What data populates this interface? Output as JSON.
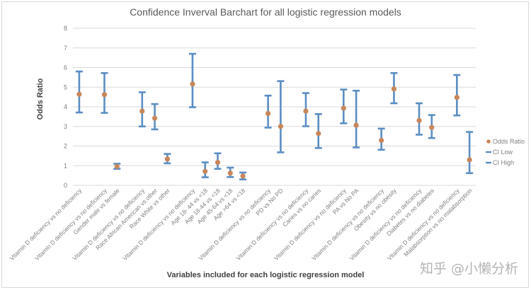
{
  "chart_data": {
    "type": "scatter",
    "subtype": "error-bar",
    "title": "Confidence Inverval Barchart for all logistic regression models",
    "xlabel": "Variables included for each logistic regression model",
    "ylabel": "Odds Ratio",
    "ylim": [
      0,
      8
    ],
    "yticks": [
      "0",
      "1",
      "2",
      "3",
      "4",
      "5",
      "6",
      "7",
      "8"
    ],
    "grid": true,
    "legend_position": "right",
    "legend": [
      {
        "name": "Odds Ratio",
        "marker": "dot",
        "color": "#c8865a"
      },
      {
        "name": "CI Low",
        "marker": "dash",
        "color": "#5b8ec3"
      },
      {
        "name": "CI High",
        "marker": "dash",
        "color": "#5b8ec3"
      }
    ],
    "colors": {
      "odds_ratio": "#c8865a",
      "ci": "#5b8ec3",
      "grid": "#d9d9d9"
    },
    "categories": [
      "Vitamin D deficiency vs no deficiency",
      "",
      "Vitamin D deficiency vs no deficiency",
      "Gender male vs female",
      "",
      "Vitamin D deficiency vs no deficiency",
      "Race African American vs other",
      "Race White vs other",
      "",
      "Vitamin D deficiency vs no deficiency",
      "Age 18- 44 vs <18",
      "Age 18-44 vs <18",
      "Age 45-64 vs <18",
      "Age >64 vs <18",
      "",
      "Vitamin D deficiency vs no deficiency",
      "PD vs No PD",
      "",
      "Vitamin D deficiency vs no deficiency",
      "Caries vs no caries",
      "",
      "Vitamin D deficiency vs no deficiency",
      "PA vs No PA",
      "",
      "Vitamin D deficiency vs no deficiency",
      "Obesity vs no obesity",
      "",
      "Vitamin D deficiency vs no deficiency",
      "Diabetes vs no diabetes",
      "",
      "Vitamin D deficiency vs no deficiency",
      "Malabsorption vs no malabsorption"
    ],
    "series": [
      {
        "name": "Odds Ratio",
        "values": [
          4.64,
          null,
          4.62,
          0.96,
          null,
          3.78,
          3.42,
          1.34,
          null,
          5.16,
          0.71,
          1.17,
          0.62,
          0.47,
          null,
          3.66,
          3.0,
          null,
          3.78,
          2.64,
          null,
          3.93,
          3.06,
          null,
          2.29,
          4.91,
          null,
          3.3,
          2.95,
          null,
          4.48,
          1.3
        ]
      },
      {
        "name": "CI Low",
        "values": [
          3.71,
          null,
          3.69,
          0.84,
          null,
          3.0,
          2.85,
          1.12,
          null,
          3.98,
          0.41,
          0.84,
          0.42,
          0.3,
          null,
          2.94,
          1.68,
          null,
          3.01,
          1.9,
          null,
          3.16,
          1.93,
          null,
          1.81,
          4.18,
          null,
          2.58,
          2.41,
          null,
          3.56,
          0.62
        ]
      },
      {
        "name": "CI High",
        "values": [
          5.8,
          null,
          5.72,
          1.1,
          null,
          4.74,
          4.14,
          1.6,
          null,
          6.7,
          1.17,
          1.63,
          0.9,
          0.65,
          null,
          4.57,
          5.31,
          null,
          4.7,
          3.63,
          null,
          4.88,
          4.82,
          null,
          2.89,
          5.72,
          null,
          4.18,
          3.58,
          null,
          5.62,
          2.72
        ]
      }
    ]
  },
  "watermark": "知乎 @小懒分析"
}
